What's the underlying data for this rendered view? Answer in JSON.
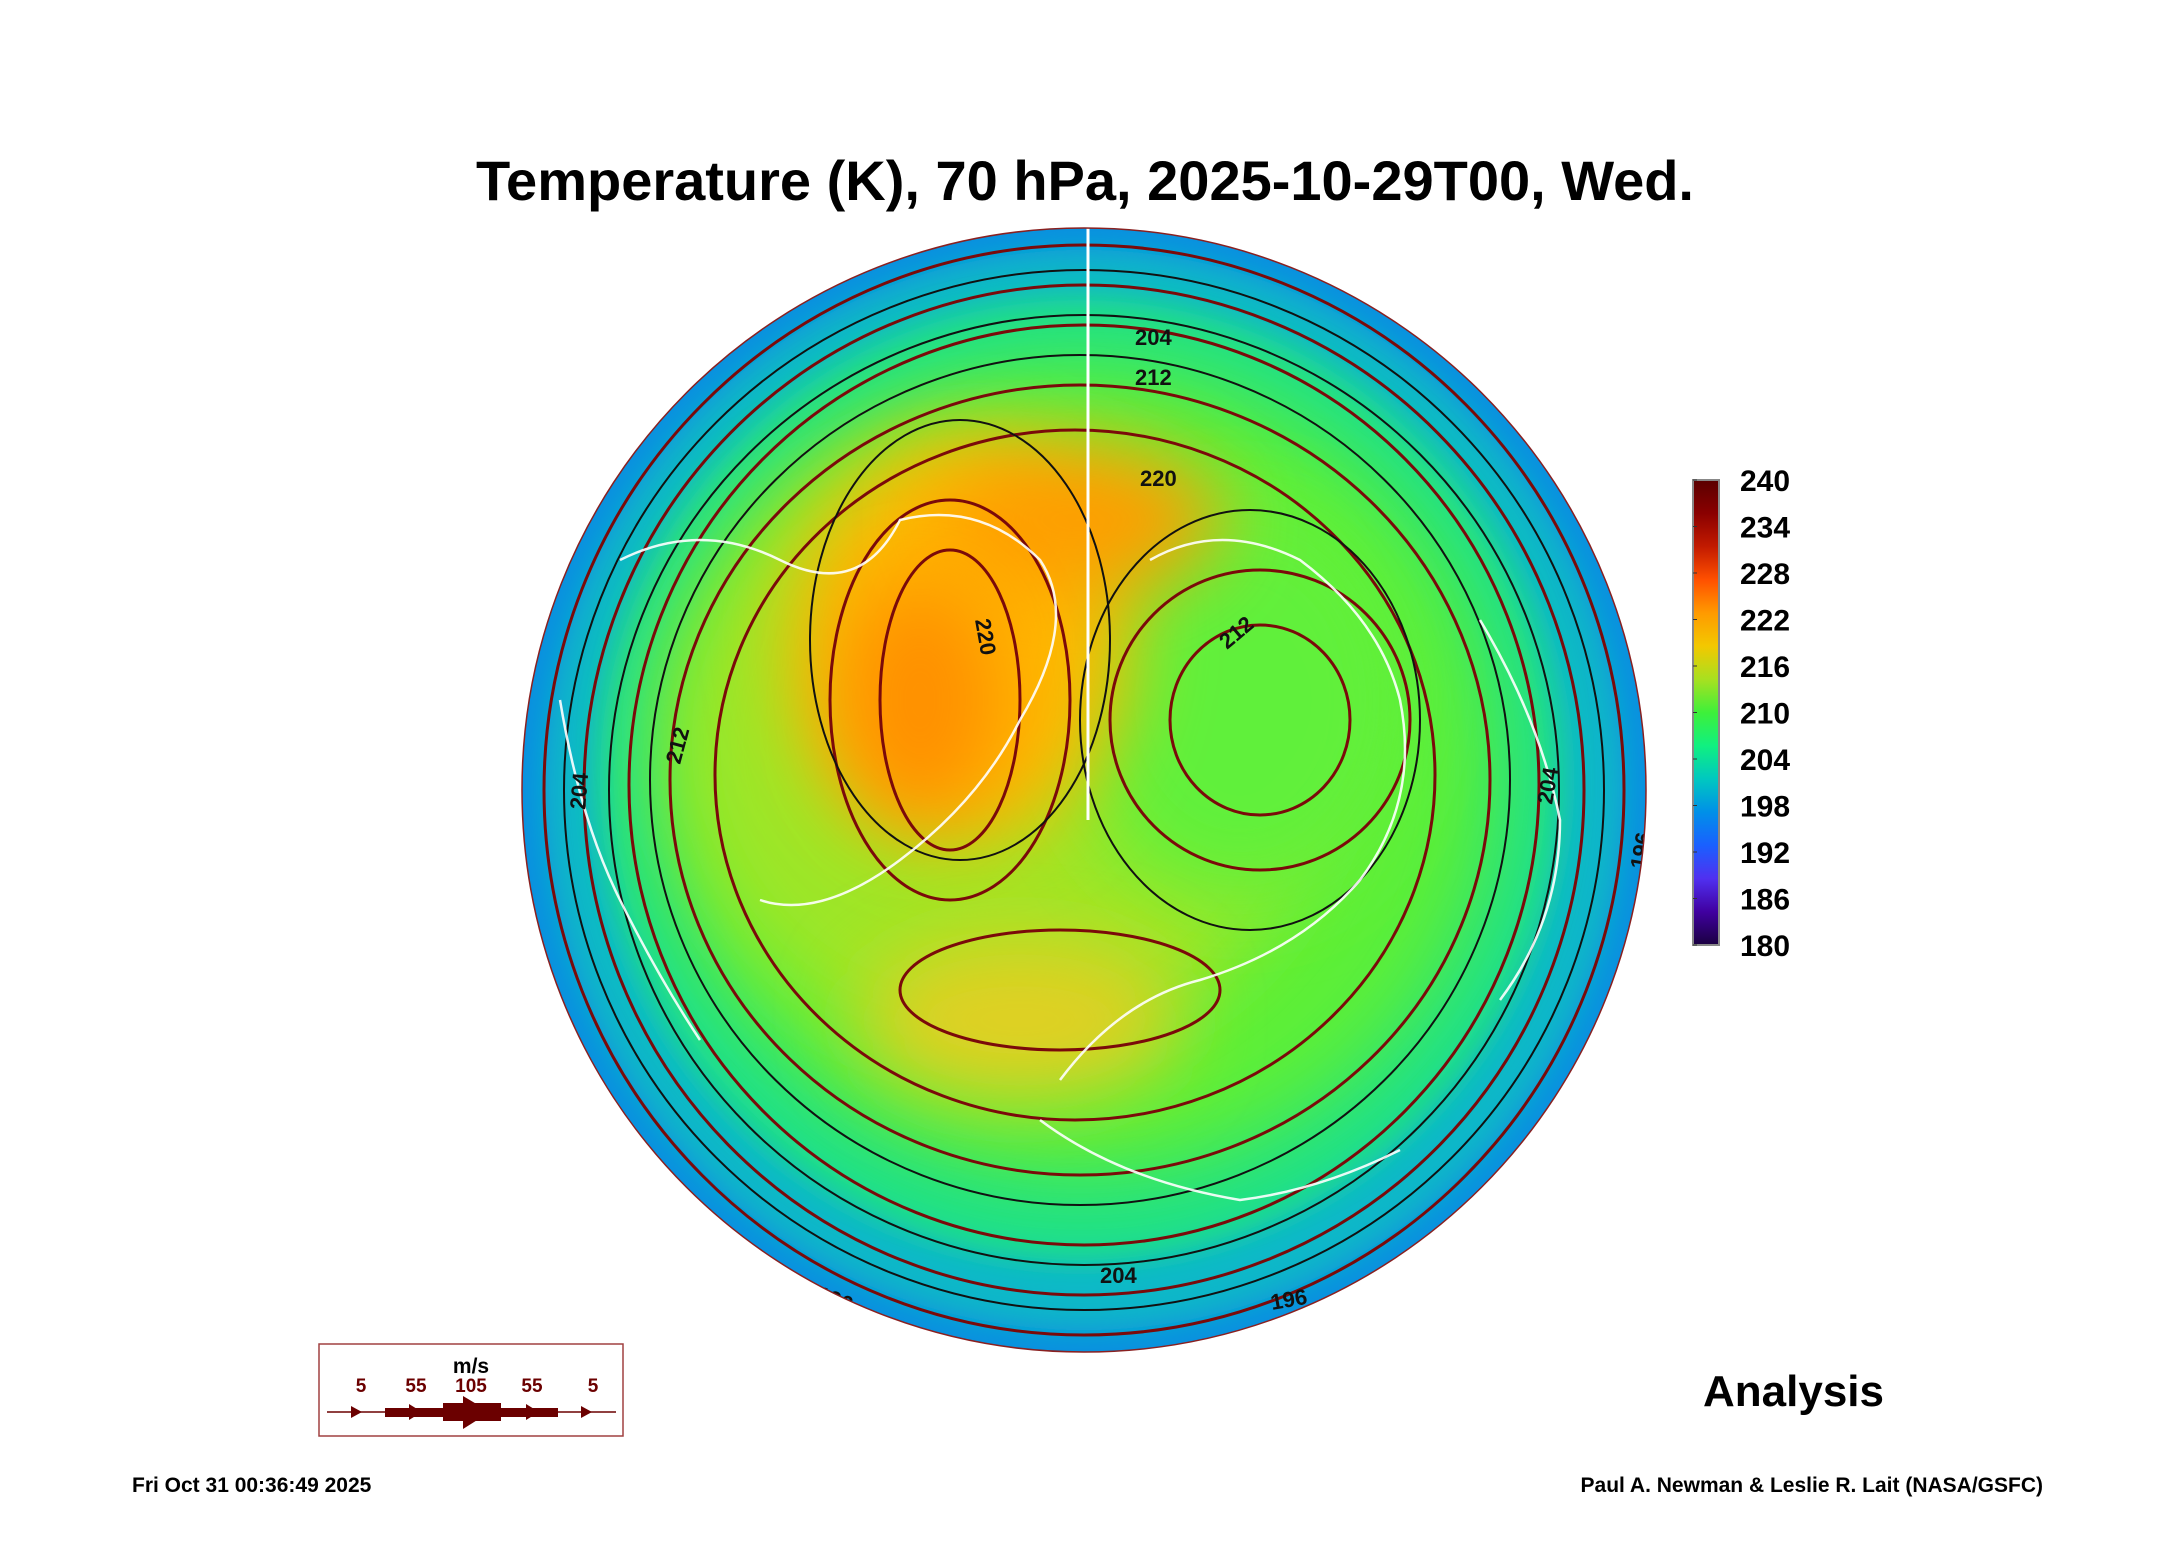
{
  "chart_data": {
    "type": "heatmap",
    "title": "Temperature (K), 70 hPa, 2025-10-29T00, Wed.",
    "projection": "north polar stereographic",
    "colorbar": {
      "ticks": [
        "240",
        "234",
        "228",
        "222",
        "216",
        "210",
        "204",
        "198",
        "192",
        "186",
        "180"
      ],
      "range": [
        180,
        240
      ],
      "colors": [
        "#5a0000",
        "#8a0000",
        "#c21a00",
        "#ff5000",
        "#ff9a00",
        "#f3c800",
        "#a8e020",
        "#3ef03a",
        "#10f080",
        "#00c8c0",
        "#0090e8",
        "#1a60ff",
        "#5030f0",
        "#4000a0",
        "#1a0040"
      ]
    },
    "contour_labels": [
      "204",
      "212",
      "220",
      "212",
      "220",
      "212",
      "204",
      "196",
      "204",
      "196",
      "196",
      "204"
    ],
    "field_summary": {
      "warm_max_K": 224,
      "edge_min_K": 192
    },
    "wind_legend": {
      "unit": "m/s",
      "labels": [
        "5",
        "55",
        "105",
        "55",
        "5"
      ],
      "color": "#6b0000"
    },
    "product": "Analysis"
  },
  "footer": {
    "timestamp": "Fri Oct 31 00:36:49 2025",
    "credit": "Paul A. Newman & Leslie R. Lait (NASA/GSFC)"
  }
}
